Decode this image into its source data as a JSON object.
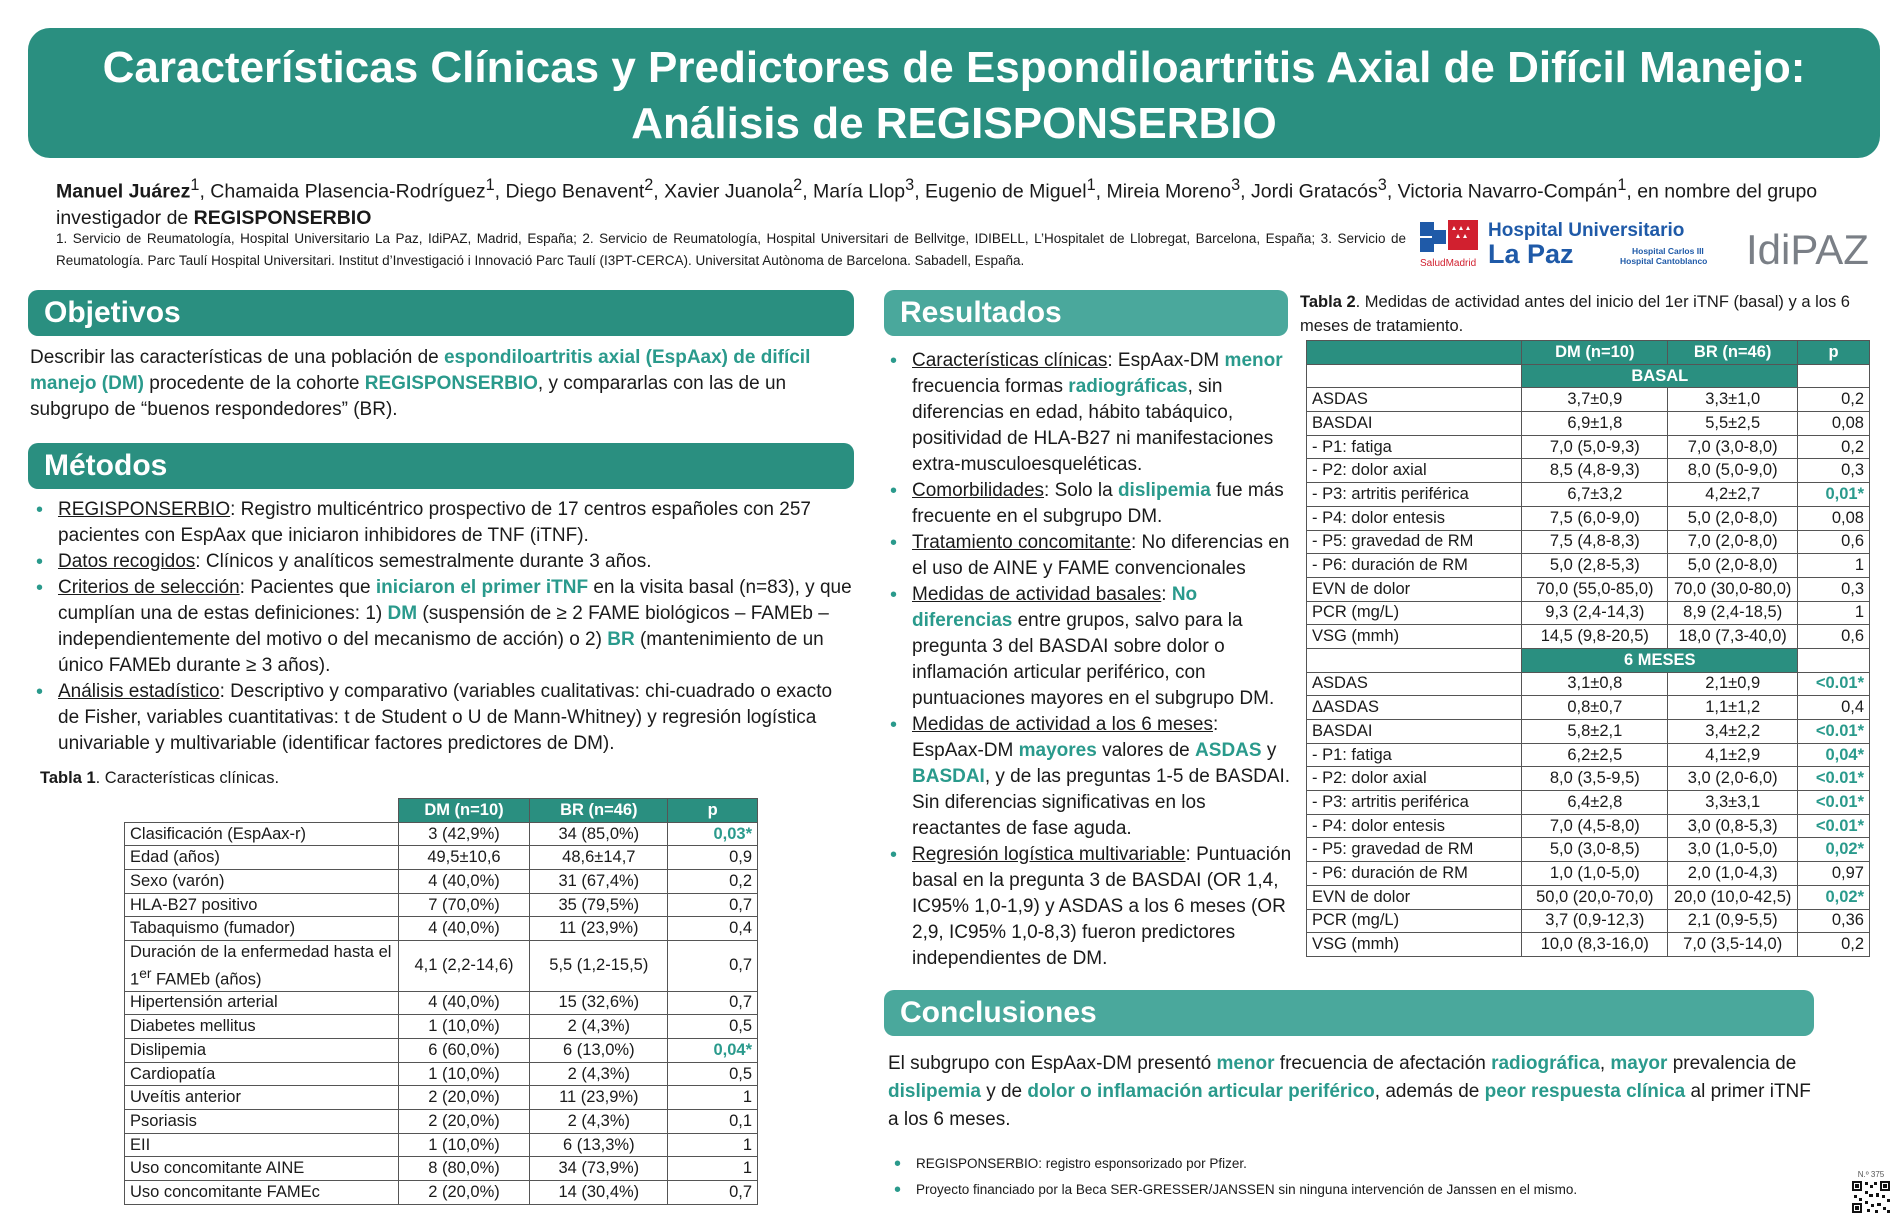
{
  "title": {
    "line1": "Características Clínicas y Predictores de Espondiloartritis Axial de Difícil Manejo:",
    "line2": "Análisis de REGISPONSERBIO"
  },
  "authors": {
    "first": "Manuel Juárez",
    "rest_a": ", Chamaida Plasencia-Rodríguez",
    "rest_b": ", Diego Benavent",
    "rest_c": ", Xavier Juanola",
    "rest_d": ", María Llop",
    "rest_e": ", Eugenio de Miguel",
    "rest_f": ", Mireia Moreno",
    "rest_g": ", Jordi Gratacós",
    "rest_h": ", Victoria Navarro-Compán",
    "rest_i": ", en nombre del grupo investigador de ",
    "group": "REGISPONSERBIO"
  },
  "affiliations": "1. Servicio de Reumatología, Hospital Universitario La Paz, IdiPAZ, Madrid, España; 2. Servicio de Reumatología, Hospital Universitari de Bellvitge, IDIBELL, L’Hospitalet de Llobregat, Barcelona, España; 3. Servicio de Reumatología. Parc Taulí Hospital Universitari. Institut d’Investigació i Innovació Parc Taulí (I3PT-CERCA). Universitat Autònoma de Barcelona. Sabadell, España.",
  "logos": {
    "hospital_line1": "Hospital Universitario",
    "hospital_line2": "La Paz",
    "hospital_sub1": "Hospital Carlos III",
    "hospital_sub2": "Hospital Cantoblanco",
    "salud": "SaludMadrid",
    "idipaz": "IdiPAZ"
  },
  "objetivos": {
    "heading": "Objetivos",
    "t1": "Describir las características de una población de ",
    "h1": "espondiloartritis axial (EspAax) de difícil manejo (DM)",
    "t2": "  procedente de la cohorte ",
    "h2": "REGISPONSERBIO",
    "t3": ", y compararlas con las de un subgrupo de “buenos respondedores” (BR)."
  },
  "metodos": {
    "heading": "Métodos",
    "b1_u": "REGISPONSERBIO",
    "b1_t": ": Registro multicéntrico prospectivo de 17 centros españoles con 257 pacientes con EspAax que iniciaron inhibidores de TNF (iTNF).",
    "b2_u": "Datos recogidos",
    "b2_t": ": Clínicos y analíticos semestralmente durante 3 años.",
    "b3_u": "Criterios de selección",
    "b3_t1": ": Pacientes que ",
    "b3_h1": "iniciaron el primer iTNF",
    "b3_t2": " en la visita basal (n=83), y que cumplían una de estas definiciones: 1) ",
    "b3_h2": "DM",
    "b3_t3": " (suspensión de ≥ 2 FAME biológicos – FAMEb – independientemente del motivo o del mecanismo de acción) o 2) ",
    "b3_h3": "BR",
    "b3_t4": " (mantenimiento de un único FAMEb durante ≥ 3 años).",
    "b4_u": "Análisis estadístico",
    "b4_t": ": Descriptivo y comparativo (variables cualitativas: chi-cuadrado o exacto de Fisher, variables cuantitativas: t de Student o U de Mann-Whitney) y regresión logística univariable y multivariable (identificar factores predictores de DM)."
  },
  "tabla1": {
    "caption_bold": "Tabla 1",
    "caption": ". Características clínicas.",
    "headers": [
      "",
      "DM  (n=10)",
      "BR (n=46)",
      "p"
    ],
    "rows": [
      [
        "Clasificación (EspAax-r)",
        "3 (42,9%)",
        "34 (85,0%)",
        "0,03*"
      ],
      [
        "Edad (años)",
        "49,5±10,6",
        "48,6±14,7",
        "0,9"
      ],
      [
        "Sexo (varón)",
        "4 (40,0%)",
        "31 (67,4%)",
        "0,2"
      ],
      [
        "HLA-B27 positivo",
        "7 (70,0%)",
        "35 (79,5%)",
        "0,7"
      ],
      [
        "Tabaquismo (fumador)",
        "4 (40,0%)",
        "11 (23,9%)",
        "0,4"
      ],
      [
        "Duración de la enfermedad hasta el 1er FAMEb (años)",
        "4,1 (2,2-14,6)",
        "5,5 (1,2-15,5)",
        "0,7"
      ],
      [
        "Hipertensión arterial",
        "4 (40,0%)",
        "15 (32,6%)",
        "0,7"
      ],
      [
        "Diabetes mellitus",
        "1 (10,0%)",
        "2 (4,3%)",
        "0,5"
      ],
      [
        "Dislipemia",
        "6 (60,0%)",
        "6 (13,0%)",
        "0,04*"
      ],
      [
        "Cardiopatía",
        "1 (10,0%)",
        "2 (4,3%)",
        "0,5"
      ],
      [
        "Uveítis anterior",
        "2 (20,0%)",
        "11 (23,9%)",
        "1"
      ],
      [
        "Psoriasis",
        "2 (20,0%)",
        "2 (4,3%)",
        "0,1"
      ],
      [
        "EII",
        "1 (10,0%)",
        "6 (13,3%)",
        "1"
      ],
      [
        "Uso concomitante AINE",
        "8 (80,0%)",
        "34 (73,9%)",
        "1"
      ],
      [
        "Uso concomitante FAMEc",
        "2 (20,0%)",
        "14 (30,4%)",
        "0,7"
      ]
    ]
  },
  "resultados": {
    "heading": "Resultados",
    "r1_u": "Características clínicas",
    "r1_t1": ": EspAax-DM ",
    "r1_h1": "menor",
    "r1_t2": " frecuencia formas ",
    "r1_h2": "radiográficas",
    "r1_t3": ", sin diferencias en edad, hábito tabáquico, positividad de HLA-B27 ni manifestaciones extra-musculoesqueléticas.",
    "r2_u": "Comorbilidades",
    "r2_t1": ": Solo la ",
    "r2_h1": "dislipemia",
    "r2_t2": " fue más frecuente en el subgrupo DM.",
    "r3_u": "Tratamiento concomitante",
    "r3_t": ": No diferencias en el uso de AINE y FAME convencionales",
    "r4_u": "Medidas de actividad basales",
    "r4_t1": ": ",
    "r4_h1": "No diferencias",
    "r4_t2": " entre grupos, salvo para la pregunta 3 del BASDAI sobre dolor o inflamación articular periférico, con puntuaciones mayores en el subgrupo DM.",
    "r5_u": "Medidas de actividad a los 6 meses",
    "r5_t1": ": EspAax-DM ",
    "r5_h1": "mayores",
    "r5_t2": " valores de ",
    "r5_h2": "ASDAS",
    "r5_t3": " y ",
    "r5_h3": "BASDAI",
    "r5_t4": ", y de las preguntas 1-5 de BASDAI. Sin diferencias significativas en los reactantes de fase aguda.",
    "r6_u": "Regresión logística multivariable",
    "r6_t": ": Puntuación basal en la pregunta 3 de BASDAI (OR 1,4, IC95% 1,0-1,9) y ASDAS a los 6 meses (OR 2,9, IC95% 1,0-8,3) fueron predictores independientes de DM."
  },
  "tabla2": {
    "caption_bold": "Tabla 2",
    "caption": ". Medidas de actividad antes del inicio del 1er iTNF (basal) y a los 6 meses de tratamiento.",
    "headers": [
      "",
      "DM  (n=10)",
      "BR (n=46)",
      "p"
    ],
    "section1": "BASAL",
    "rows1": [
      [
        "ASDAS",
        "3,7±0,9",
        "3,3±1,0",
        "0,2"
      ],
      [
        "BASDAI",
        "6,9±1,8",
        "5,5±2,5",
        "0,08"
      ],
      [
        "-  P1: fatiga",
        "7,0 (5,0-9,3)",
        "7,0 (3,0-8,0)",
        "0,2"
      ],
      [
        "-  P2: dolor axial",
        "8,5 (4,8-9,3)",
        "8,0 (5,0-9,0)",
        "0,3"
      ],
      [
        "-  P3: artritis periférica",
        "6,7±3,2",
        "4,2±2,7",
        "0,01*"
      ],
      [
        "-  P4: dolor entesis",
        "7,5 (6,0-9,0)",
        "5,0 (2,0-8,0)",
        "0,08"
      ],
      [
        "-  P5: gravedad de RM",
        "7,5 (4,8-8,3)",
        "7,0 (2,0-8,0)",
        "0,6"
      ],
      [
        "-  P6: duración de RM",
        "5,0 (2,8-5,3)",
        "5,0 (2,0-8,0)",
        "1"
      ],
      [
        "EVN de dolor",
        "70,0 (55,0-85,0)",
        "70,0 (30,0-80,0)",
        "0,3"
      ],
      [
        "PCR (mg/L)",
        "9,3 (2,4-14,3)",
        "8,9 (2,4-18,5)",
        "1"
      ],
      [
        "VSG (mmh)",
        "14,5 (9,8-20,5)",
        "18,0 (7,3-40,0)",
        "0,6"
      ]
    ],
    "section2": "6 MESES",
    "rows2": [
      [
        "ASDAS",
        "3,1±0,8",
        "2,1±0,9",
        "<0.01*"
      ],
      [
        "ΔASDAS",
        "0,8±0,7",
        "1,1±1,2",
        "0,4"
      ],
      [
        "BASDAI",
        "5,8±2,1",
        "3,4±2,2",
        "<0.01*"
      ],
      [
        "-  P1: fatiga",
        "6,2±2,5",
        "4,1±2,9",
        "0,04*"
      ],
      [
        "-  P2: dolor axial",
        "8,0 (3,5-9,5)",
        "3,0 (2,0-6,0)",
        "<0.01*"
      ],
      [
        "-  P3: artritis periférica",
        "6,4±2,8",
        "3,3±3,1",
        "<0.01*"
      ],
      [
        "-  P4: dolor entesis",
        "7,0 (4,5-8,0)",
        "3,0 (0,8-5,3)",
        "<0.01*"
      ],
      [
        "-  P5: gravedad de RM",
        "5,0 (3,0-8,5)",
        "3,0 (1,0-5,0)",
        "0,02*"
      ],
      [
        "-  P6: duración de RM",
        "1,0 (1,0-5,0)",
        "2,0 (1,0-4,3)",
        "0,97"
      ],
      [
        "EVN de dolor",
        "50,0 (20,0-70,0)",
        "20,0 (10,0-42,5)",
        "0,02*"
      ],
      [
        "PCR (mg/L)",
        "3,7 (0,9-12,3)",
        "2,1 (0,9-5,5)",
        "0,36"
      ],
      [
        "VSG (mmh)",
        "10,0 (8,3-16,0)",
        "7,0 (3,5-14,0)",
        "0,2"
      ]
    ]
  },
  "conclusiones": {
    "heading": "Conclusiones",
    "t1": "El subgrupo con EspAax-DM presentó ",
    "h1": "menor",
    "t2": " frecuencia de afectación ",
    "h2": "radiográfica",
    "t3": ", ",
    "h3": "mayor",
    "t4": " prevalencia de ",
    "h4": "dislipemia",
    "t5": " y de ",
    "h5": "dolor o inflamación articular periférico",
    "t6": ", además de ",
    "h6": "peor respuesta clínica",
    "t7": " al primer iTNF a los 6 meses."
  },
  "footnotes": [
    "REGISPONSERBIO: registro esponsorizado por Pfizer.",
    "Proyecto financiado por la Beca SER-GRESSER/JANSSEN sin ninguna intervención de Janssen en el mismo."
  ],
  "poster_number": "N.º 375",
  "colors": {
    "teal": "#2a8f80",
    "teal_text": "#2a9a8c",
    "hospital_blue": "#1f5aa8",
    "madrid_red": "#d1202f"
  }
}
